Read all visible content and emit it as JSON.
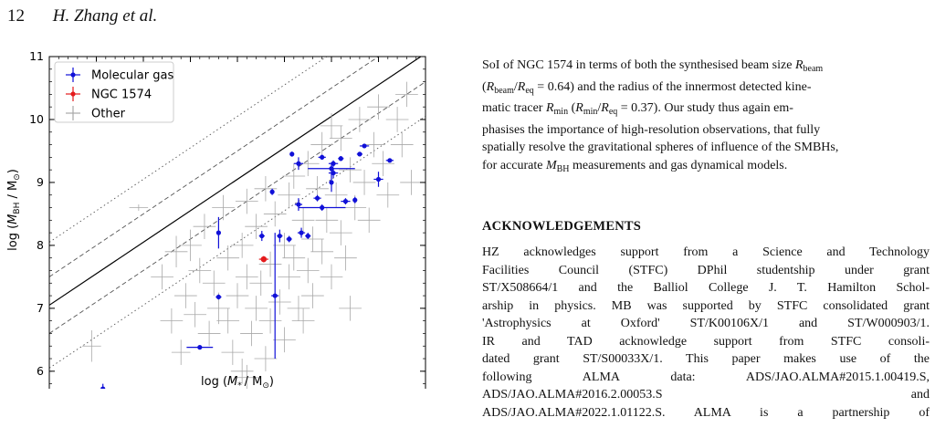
{
  "header": {
    "page_number": "12",
    "running_title": "H. Zhang et al."
  },
  "right_column": {
    "paragraph_lines": [
      "SoI of NGC 1574 in terms of both the synthesised beam size R_beam",
      "(R_beam/R_eq = 0.64) and the radius of the innermost detected kine-",
      "matic tracer R_min (R_min/R_eq = 0.37). Our study thus again em-",
      "phasises the importance of high-resolution observations, that fully",
      "spatially resolve the gravitational spheres of influence of the SMBHs,",
      "for accurate M_BH measurements and gas dynamical models."
    ],
    "ack_heading": "ACKNOWLEDGEMENTS",
    "ack_lines": [
      "HZ acknowledges support from a Science and Technology",
      "Facilities Council (STFC) DPhil studentship under grant",
      "ST/X508664/1 and the Balliol College J. T. Hamilton Schol-",
      "arship in physics. MB was supported by STFC consolidated grant",
      "'Astrophysics at Oxford' ST/K00106X/1 and ST/W000903/1.",
      "IR and TAD acknowledge support from STFC consoli-",
      "dated grant ST/S00033X/1. This paper makes use of the",
      "following ALMA data: ADS/JAO.ALMA#2015.1.00419.S,",
      "ADS/JAO.ALMA#2016.2.00053.S and",
      "ADS/JAO.ALMA#2022.1.01122.S. ALMA is a partnership of"
    ]
  },
  "colors": {
    "molecular": "#1010d8",
    "ngc": "#e41a1c",
    "other": "#a8a8a8"
  },
  "chart_data": {
    "type": "scatter",
    "title": "",
    "xlabel": "log (M* / M⊙)",
    "ylabel": "log (M_BH / M⊙)",
    "xlim": [
      8.5,
      12.5
    ],
    "ylim": [
      5.2,
      11.0
    ],
    "xticks": [
      "8.5",
      "9.0",
      "9.5",
      "10.0",
      "10.5",
      "11.0",
      "11.5",
      "12.0",
      "12.5"
    ],
    "yticks": [
      "6",
      "7",
      "8",
      "9",
      "10",
      "11"
    ],
    "legend_position": "top-left",
    "relations": [
      {
        "style": "solid",
        "slope": 1.0,
        "intercept": -1.45
      },
      {
        "style": "dashed",
        "slope": 1.0,
        "intercept": -1.0
      },
      {
        "style": "dashed",
        "slope": 1.0,
        "intercept": -1.9
      },
      {
        "style": "dotted",
        "slope": 1.0,
        "intercept": -0.45
      },
      {
        "style": "dotted",
        "slope": 1.0,
        "intercept": -2.45
      }
    ],
    "series": [
      {
        "name": "Molecular gas",
        "points": [
          {
            "x": 9.07,
            "y": 5.72,
            "xerr": 0.02,
            "yerr": 0.08
          },
          {
            "x": 10.1,
            "y": 6.38,
            "xerr": 0.14,
            "yerr": 0.03
          },
          {
            "x": 10.3,
            "y": 8.2,
            "xerr": 0.02,
            "yerr": 0.25
          },
          {
            "x": 10.3,
            "y": 7.18,
            "xerr": 0.03,
            "yerr": 0.04
          },
          {
            "x": 10.76,
            "y": 8.15,
            "xerr": 0.03,
            "yerr": 0.08
          },
          {
            "x": 10.87,
            "y": 8.85,
            "xerr": 0.02,
            "yerr": 0.05
          },
          {
            "x": 10.9,
            "y": 7.2,
            "xerr": 0.04,
            "yerr": 1.0
          },
          {
            "x": 10.95,
            "y": 8.15,
            "xerr": 0.03,
            "yerr": 0.1
          },
          {
            "x": 11.05,
            "y": 8.1,
            "xerr": 0.03,
            "yerr": 0.05
          },
          {
            "x": 11.08,
            "y": 9.45,
            "xerr": 0.02,
            "yerr": 0.04
          },
          {
            "x": 11.15,
            "y": 9.3,
            "xerr": 0.05,
            "yerr": 0.1
          },
          {
            "x": 11.15,
            "y": 8.65,
            "xerr": 0.04,
            "yerr": 0.1
          },
          {
            "x": 11.18,
            "y": 8.2,
            "xerr": 0.04,
            "yerr": 0.08
          },
          {
            "x": 11.25,
            "y": 8.15,
            "xerr": 0.03,
            "yerr": 0.05
          },
          {
            "x": 11.35,
            "y": 8.75,
            "xerr": 0.04,
            "yerr": 0.05
          },
          {
            "x": 11.4,
            "y": 9.4,
            "xerr": 0.04,
            "yerr": 0.04
          },
          {
            "x": 11.4,
            "y": 8.6,
            "xerr": 0.25,
            "yerr": 0.05
          },
          {
            "x": 11.5,
            "y": 9.22,
            "xerr": 0.25,
            "yerr": 0.1
          },
          {
            "x": 11.5,
            "y": 9.0,
            "xerr": 0.02,
            "yerr": 0.15
          },
          {
            "x": 11.52,
            "y": 9.15,
            "xerr": 0.05,
            "yerr": 0.08
          },
          {
            "x": 11.52,
            "y": 9.3,
            "xerr": 0.05,
            "yerr": 0.05
          },
          {
            "x": 11.6,
            "y": 9.38,
            "xerr": 0.03,
            "yerr": 0.04
          },
          {
            "x": 11.65,
            "y": 8.7,
            "xerr": 0.05,
            "yerr": 0.05
          },
          {
            "x": 11.75,
            "y": 8.72,
            "xerr": 0.02,
            "yerr": 0.05
          },
          {
            "x": 11.8,
            "y": 9.45,
            "xerr": 0.03,
            "yerr": 0.03
          },
          {
            "x": 11.85,
            "y": 9.58,
            "xerr": 0.05,
            "yerr": 0.03
          },
          {
            "x": 12.0,
            "y": 9.05,
            "xerr": 0.05,
            "yerr": 0.12
          },
          {
            "x": 12.12,
            "y": 9.35,
            "xerr": 0.04,
            "yerr": 0.03
          }
        ]
      },
      {
        "name": "NGC 1574",
        "points": [
          {
            "x": 10.78,
            "y": 7.78,
            "xerr": 0.05,
            "yerr": 0.05
          }
        ]
      },
      {
        "name": "Other",
        "points": [
          {
            "x": 8.95,
            "y": 6.4,
            "xerr": 0.1,
            "yerr": 0.25
          },
          {
            "x": 9.45,
            "y": 8.6,
            "xerr": 0.1,
            "yerr": 0.05
          },
          {
            "x": 9.7,
            "y": 7.5,
            "xerr": 0.12,
            "yerr": 0.2
          },
          {
            "x": 9.8,
            "y": 6.8,
            "xerr": 0.12,
            "yerr": 0.2
          },
          {
            "x": 9.85,
            "y": 7.9,
            "xerr": 0.12,
            "yerr": 0.25
          },
          {
            "x": 9.9,
            "y": 6.3,
            "xerr": 0.1,
            "yerr": 0.2
          },
          {
            "x": 9.95,
            "y": 7.2,
            "xerr": 0.12,
            "yerr": 0.2
          },
          {
            "x": 10.0,
            "y": 8.0,
            "xerr": 0.12,
            "yerr": 0.25
          },
          {
            "x": 10.05,
            "y": 6.9,
            "xerr": 0.12,
            "yerr": 0.2
          },
          {
            "x": 10.1,
            "y": 7.6,
            "xerr": 0.12,
            "yerr": 0.2
          },
          {
            "x": 10.15,
            "y": 8.3,
            "xerr": 0.12,
            "yerr": 0.2
          },
          {
            "x": 10.2,
            "y": 6.6,
            "xerr": 0.12,
            "yerr": 0.2
          },
          {
            "x": 10.25,
            "y": 7.4,
            "xerr": 0.12,
            "yerr": 0.2
          },
          {
            "x": 10.3,
            "y": 7.0,
            "xerr": 0.12,
            "yerr": 0.25
          },
          {
            "x": 10.35,
            "y": 8.6,
            "xerr": 0.12,
            "yerr": 0.2
          },
          {
            "x": 10.4,
            "y": 6.8,
            "xerr": 0.12,
            "yerr": 0.2
          },
          {
            "x": 10.4,
            "y": 7.8,
            "xerr": 0.12,
            "yerr": 0.2
          },
          {
            "x": 10.45,
            "y": 6.3,
            "xerr": 0.12,
            "yerr": 0.2
          },
          {
            "x": 10.5,
            "y": 7.2,
            "xerr": 0.12,
            "yerr": 0.2
          },
          {
            "x": 10.55,
            "y": 8.0,
            "xerr": 0.12,
            "yerr": 0.2
          },
          {
            "x": 10.55,
            "y": 6.0,
            "xerr": 0.12,
            "yerr": 0.2
          },
          {
            "x": 10.6,
            "y": 7.5,
            "xerr": 0.12,
            "yerr": 0.2
          },
          {
            "x": 10.6,
            "y": 8.7,
            "xerr": 0.12,
            "yerr": 0.2
          },
          {
            "x": 10.65,
            "y": 6.6,
            "xerr": 0.12,
            "yerr": 0.2
          },
          {
            "x": 10.7,
            "y": 7.0,
            "xerr": 0.12,
            "yerr": 0.2
          },
          {
            "x": 10.7,
            "y": 8.3,
            "xerr": 0.12,
            "yerr": 0.2
          },
          {
            "x": 10.75,
            "y": 7.4,
            "xerr": 0.12,
            "yerr": 0.2
          },
          {
            "x": 10.8,
            "y": 6.2,
            "xerr": 0.12,
            "yerr": 0.2
          },
          {
            "x": 10.8,
            "y": 8.9,
            "xerr": 0.12,
            "yerr": 0.2
          },
          {
            "x": 10.85,
            "y": 7.7,
            "xerr": 0.12,
            "yerr": 0.2
          },
          {
            "x": 10.85,
            "y": 6.8,
            "xerr": 0.12,
            "yerr": 0.2
          },
          {
            "x": 10.9,
            "y": 8.5,
            "xerr": 0.12,
            "yerr": 0.2
          },
          {
            "x": 10.95,
            "y": 7.1,
            "xerr": 0.12,
            "yerr": 0.2
          },
          {
            "x": 11.0,
            "y": 8.0,
            "xerr": 0.12,
            "yerr": 0.2
          },
          {
            "x": 11.0,
            "y": 6.5,
            "xerr": 0.12,
            "yerr": 0.2
          },
          {
            "x": 11.05,
            "y": 7.5,
            "xerr": 0.12,
            "yerr": 0.2
          },
          {
            "x": 11.05,
            "y": 8.8,
            "xerr": 0.12,
            "yerr": 0.2
          },
          {
            "x": 11.1,
            "y": 7.8,
            "xerr": 0.12,
            "yerr": 0.2
          },
          {
            "x": 11.1,
            "y": 9.1,
            "xerr": 0.12,
            "yerr": 0.2
          },
          {
            "x": 11.15,
            "y": 7.0,
            "xerr": 0.12,
            "yerr": 0.2
          },
          {
            "x": 11.2,
            "y": 8.4,
            "xerr": 0.12,
            "yerr": 0.2
          },
          {
            "x": 11.2,
            "y": 6.8,
            "xerr": 0.12,
            "yerr": 0.2
          },
          {
            "x": 11.25,
            "y": 7.6,
            "xerr": 0.12,
            "yerr": 0.2
          },
          {
            "x": 11.25,
            "y": 9.3,
            "xerr": 0.12,
            "yerr": 0.2
          },
          {
            "x": 11.3,
            "y": 8.1,
            "xerr": 0.12,
            "yerr": 0.2
          },
          {
            "x": 11.3,
            "y": 7.2,
            "xerr": 0.12,
            "yerr": 0.2
          },
          {
            "x": 11.35,
            "y": 8.9,
            "xerr": 0.12,
            "yerr": 0.2
          },
          {
            "x": 11.4,
            "y": 7.9,
            "xerr": 0.12,
            "yerr": 0.2
          },
          {
            "x": 11.4,
            "y": 9.6,
            "xerr": 0.12,
            "yerr": 0.2
          },
          {
            "x": 11.45,
            "y": 8.4,
            "xerr": 0.12,
            "yerr": 0.2
          },
          {
            "x": 11.5,
            "y": 7.5,
            "xerr": 0.12,
            "yerr": 0.2
          },
          {
            "x": 11.5,
            "y": 9.9,
            "xerr": 0.12,
            "yerr": 0.2
          },
          {
            "x": 11.55,
            "y": 8.8,
            "xerr": 0.12,
            "yerr": 0.2
          },
          {
            "x": 11.6,
            "y": 8.2,
            "xerr": 0.12,
            "yerr": 0.2
          },
          {
            "x": 11.6,
            "y": 9.7,
            "xerr": 0.12,
            "yerr": 0.2
          },
          {
            "x": 11.65,
            "y": 7.8,
            "xerr": 0.12,
            "yerr": 0.2
          },
          {
            "x": 11.7,
            "y": 9.2,
            "xerr": 0.12,
            "yerr": 0.2
          },
          {
            "x": 11.75,
            "y": 8.6,
            "xerr": 0.12,
            "yerr": 0.2
          },
          {
            "x": 11.8,
            "y": 10.0,
            "xerr": 0.12,
            "yerr": 0.2
          },
          {
            "x": 11.85,
            "y": 9.0,
            "xerr": 0.12,
            "yerr": 0.2
          },
          {
            "x": 11.9,
            "y": 8.4,
            "xerr": 0.12,
            "yerr": 0.2
          },
          {
            "x": 11.95,
            "y": 9.6,
            "xerr": 0.12,
            "yerr": 0.2
          },
          {
            "x": 12.0,
            "y": 10.2,
            "xerr": 0.12,
            "yerr": 0.2
          },
          {
            "x": 12.05,
            "y": 9.3,
            "xerr": 0.12,
            "yerr": 0.2
          },
          {
            "x": 12.1,
            "y": 8.8,
            "xerr": 0.12,
            "yerr": 0.2
          },
          {
            "x": 12.2,
            "y": 10.0,
            "xerr": 0.12,
            "yerr": 0.2
          },
          {
            "x": 12.25,
            "y": 9.6,
            "xerr": 0.12,
            "yerr": 0.2
          },
          {
            "x": 12.3,
            "y": 10.4,
            "xerr": 0.12,
            "yerr": 0.2
          },
          {
            "x": 12.35,
            "y": 9.0,
            "xerr": 0.12,
            "yerr": 0.2
          },
          {
            "x": 11.7,
            "y": 7.0,
            "xerr": 0.12,
            "yerr": 0.2
          },
          {
            "x": 10.6,
            "y": 5.9,
            "xerr": 0.12,
            "yerr": 0.2
          }
        ]
      }
    ]
  }
}
